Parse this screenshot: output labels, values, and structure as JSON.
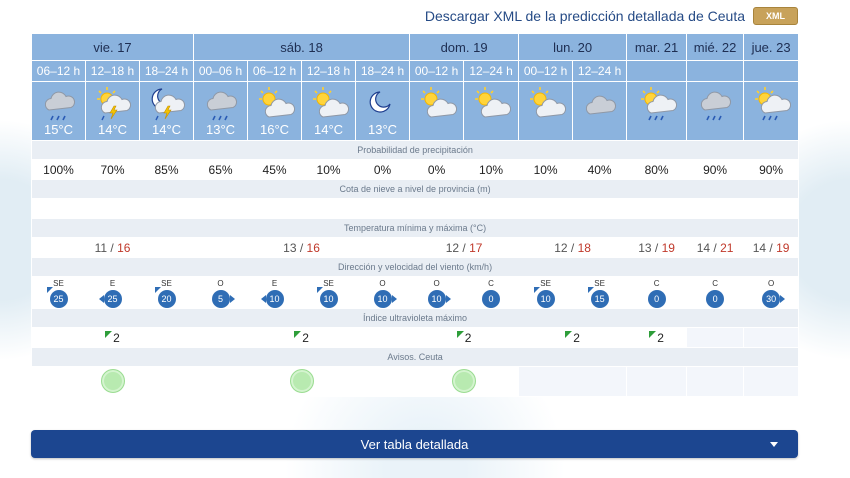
{
  "header": {
    "download_text": "Descargar XML de la predicción detallada de Ceuta",
    "xml_badge": "XML"
  },
  "days": [
    {
      "label": "vie. 17",
      "span": 3
    },
    {
      "label": "sáb. 18",
      "span": 4
    },
    {
      "label": "dom. 19",
      "span": 2
    },
    {
      "label": "lun. 20",
      "span": 2
    },
    {
      "label": "mar. 21",
      "span": 1
    },
    {
      "label": "mié. 22",
      "span": 1
    },
    {
      "label": "jue. 23",
      "span": 1
    }
  ],
  "periods": [
    "06–12 h",
    "12–18 h",
    "18–24 h",
    "00–06 h",
    "06–12 h",
    "12–18 h",
    "18–24 h",
    "00–12 h",
    "12–24 h",
    "00–12 h",
    "12–24 h",
    "",
    "",
    ""
  ],
  "sky": [
    {
      "icon": "cloud-rain-icon",
      "temp": "15°C"
    },
    {
      "icon": "sun-cloud-storm-icon",
      "temp": "14°C"
    },
    {
      "icon": "moon-cloud-storm-icon",
      "temp": "14°C"
    },
    {
      "icon": "cloud-rain-icon",
      "temp": "13°C"
    },
    {
      "icon": "sun-cloud-icon",
      "temp": "16°C"
    },
    {
      "icon": "sun-cloud-icon",
      "temp": "14°C"
    },
    {
      "icon": "moon-icon",
      "temp": "13°C"
    },
    {
      "icon": "sun-cloud-icon",
      "temp": ""
    },
    {
      "icon": "sun-cloud-icon",
      "temp": ""
    },
    {
      "icon": "sun-cloud-icon",
      "temp": ""
    },
    {
      "icon": "cloud-icon",
      "temp": ""
    },
    {
      "icon": "sun-cloud-rain-icon",
      "temp": ""
    },
    {
      "icon": "cloud-rain-icon",
      "temp": ""
    },
    {
      "icon": "sun-cloud-rain-icon",
      "temp": ""
    }
  ],
  "labels": {
    "precip": "Probabilidad de precipitación",
    "snow": "Cota de nieve a nivel de provincia (m)",
    "temp": "Temperatura mínima y máxima (°C)",
    "wind": "Dirección y velocidad del viento (km/h)",
    "uv": "Índice ultravioleta máximo",
    "avisos": "Avisos. Ceuta"
  },
  "precip": [
    "100%",
    "70%",
    "85%",
    "65%",
    "45%",
    "10%",
    "0%",
    "0%",
    "10%",
    "10%",
    "40%",
    "80%",
    "90%",
    "90%"
  ],
  "temps": [
    {
      "min": "11",
      "max": "16"
    },
    {
      "min": "13",
      "max": "16"
    },
    {
      "min": "12",
      "max": "17"
    },
    {
      "min": "12",
      "max": "18"
    },
    {
      "min": "13",
      "max": "19"
    },
    {
      "min": "14",
      "max": "21"
    },
    {
      "min": "14",
      "max": "19"
    }
  ],
  "temp_sep": "/",
  "wind": [
    {
      "dir": "SE",
      "speed": "25",
      "arrow": "nw"
    },
    {
      "dir": "E",
      "speed": "25",
      "arrow": "left"
    },
    {
      "dir": "SE",
      "speed": "20",
      "arrow": "nw"
    },
    {
      "dir": "O",
      "speed": "5",
      "arrow": "right"
    },
    {
      "dir": "E",
      "speed": "10",
      "arrow": "left"
    },
    {
      "dir": "SE",
      "speed": "10",
      "arrow": "nw"
    },
    {
      "dir": "O",
      "speed": "10",
      "arrow": "right"
    },
    {
      "dir": "O",
      "speed": "10",
      "arrow": "right"
    },
    {
      "dir": "C",
      "speed": "0",
      "arrow": ""
    },
    {
      "dir": "SE",
      "speed": "10",
      "arrow": "nw"
    },
    {
      "dir": "SE",
      "speed": "15",
      "arrow": "nw"
    },
    {
      "dir": "C",
      "speed": "0",
      "arrow": ""
    },
    {
      "dir": "C",
      "speed": "0",
      "arrow": ""
    },
    {
      "dir": "O",
      "speed": "30",
      "arrow": "right"
    }
  ],
  "uv": [
    "2",
    "2",
    "2",
    "2",
    "2",
    "",
    ""
  ],
  "avisos": [
    "green",
    "green",
    "green",
    "",
    "",
    "",
    ""
  ],
  "button": {
    "label": "Ver tabla detallada"
  }
}
